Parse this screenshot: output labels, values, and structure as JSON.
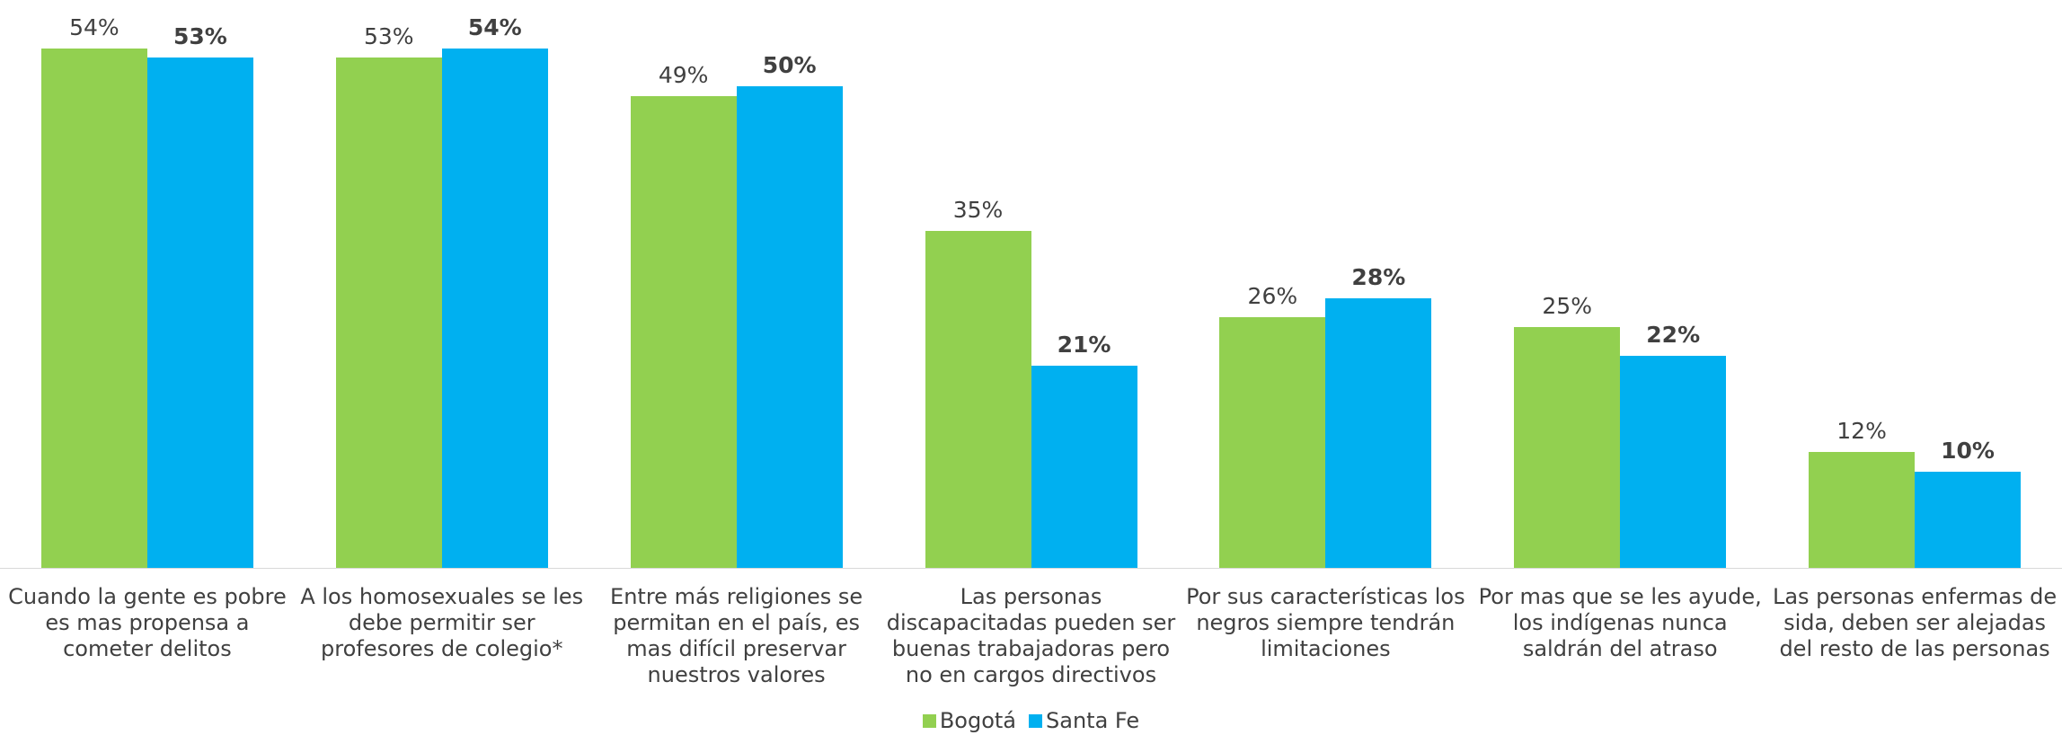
{
  "chart_data": {
    "type": "bar",
    "categories": [
      "Cuando la gente es pobre es mas propensa a cometer delitos",
      "A los homosexuales se les debe permitir ser profesores de colegio*",
      "Entre más religiones se permitan en el país, es mas difícil preservar nuestros valores",
      "Las personas discapacitadas pueden ser buenas trabajadoras pero no en cargos directivos",
      "Por sus características los negros siempre tendrán limitaciones",
      "Por mas que se les ayude, los indígenas nunca saldrán del atraso",
      "Las personas enfermas de sida, deben ser alejadas del resto de las personas"
    ],
    "series": [
      {
        "name": "Bogotá",
        "color": "#92d050",
        "values": [
          54,
          53,
          49,
          35,
          26,
          25,
          12
        ],
        "value_labels": [
          "54%",
          "53%",
          "49%",
          "35%",
          "26%",
          "25%",
          "12%"
        ]
      },
      {
        "name": "Santa Fe",
        "color": "#00b0f0",
        "values": [
          53,
          54,
          50,
          21,
          28,
          22,
          10
        ],
        "value_labels": [
          "53%",
          "54%",
          "50%",
          "21%",
          "28%",
          "22%",
          "10%"
        ]
      }
    ],
    "ylim": [
      0,
      59
    ],
    "legend": "bottom"
  }
}
